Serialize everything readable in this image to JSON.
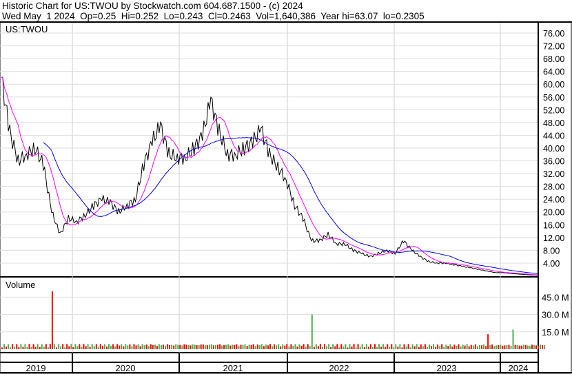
{
  "header": {
    "title": "Historic Chart for US:TWOU by Stockwatch.com 604.687.1500 - (c) 2024",
    "quote": "Wed May  1 2024  Op=0.25  Hi=0.252  Lo=0.243  Cl=0.2463  Vol=1,640,386  Year hi=63.07  lo=0.2305"
  },
  "chart_data": [
    {
      "type": "line",
      "title": "US:TWOU",
      "ylim": [
        0,
        80
      ],
      "grid": true,
      "colors": {
        "price": "#000000",
        "ma_short": "#ff00ff",
        "ma_long": "#0000ff"
      },
      "y_ticks": [
        "4.00",
        "8.00",
        "12.00",
        "16.00",
        "20.00",
        "24.00",
        "28.00",
        "32.00",
        "36.00",
        "40.00",
        "44.00",
        "48.00",
        "52.00",
        "56.00",
        "60.00",
        "64.00",
        "68.00",
        "72.00",
        "76.00"
      ],
      "x_labels": [
        "2019",
        "2020",
        "2021",
        "2022",
        "2023",
        "2024"
      ],
      "monthly_close": [
        62,
        45,
        36,
        38,
        40,
        35,
        20,
        13,
        18,
        17,
        19,
        22,
        24,
        23,
        20,
        22,
        24,
        35,
        42,
        47,
        38,
        37,
        37,
        40,
        44,
        55,
        45,
        38,
        38,
        40,
        42,
        46,
        38,
        34,
        30,
        22,
        18,
        11,
        11,
        13,
        10,
        10,
        8,
        7,
        6,
        7,
        8,
        7,
        11,
        8,
        6,
        4.5,
        4,
        4,
        3.5,
        3,
        2.5,
        2,
        1.5,
        1,
        1,
        0.7,
        0.5,
        0.3,
        0.25
      ]
    },
    {
      "type": "bar",
      "title": "Volume",
      "ylim": [
        0,
        52
      ],
      "y_ticks": [
        "15.0 M",
        "30.0 M",
        "45.0 M"
      ],
      "colors": {
        "up": "#4caf50",
        "down": "#ff0000"
      },
      "spikes_millions": [
        {
          "month": 6,
          "value": 50
        },
        {
          "month": 37,
          "value": 30
        },
        {
          "month": 58,
          "value": 13
        },
        {
          "month": 61,
          "value": 17
        }
      ]
    }
  ]
}
